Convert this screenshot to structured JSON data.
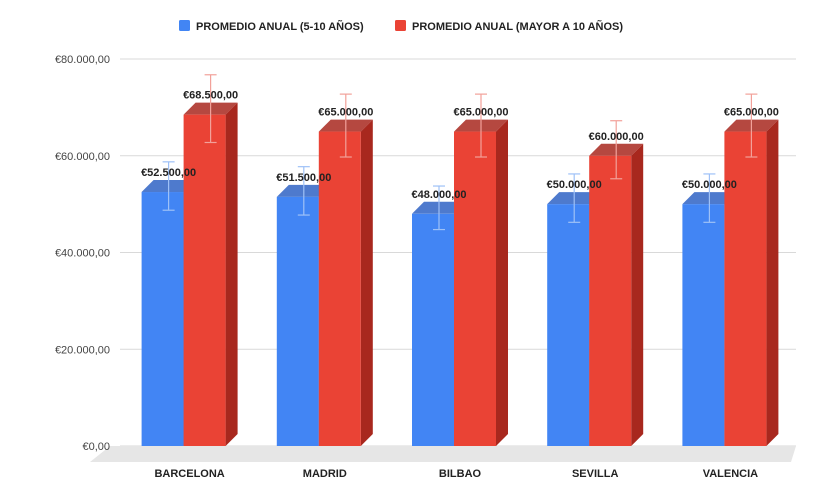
{
  "chart_data": {
    "type": "bar",
    "title": "",
    "xlabel": "",
    "ylabel": "",
    "categories": [
      "BARCELONA",
      "MADRID",
      "BILBAO",
      "SEVILLA",
      "VALENCIA"
    ],
    "series": [
      {
        "name": "PROMEDIO ANUAL (5-10 AÑOS)",
        "color": "#4285f4",
        "side_color": "#2f63c4",
        "values": [
          52500,
          51500,
          48000,
          50000,
          50000
        ],
        "labels": [
          "€52.500,00",
          "€51.500,00",
          "€48.000,00",
          "€50.000,00",
          "€50.000,00"
        ],
        "error_low": [
          47500,
          46500,
          43500,
          45000,
          45000
        ],
        "error_high": [
          57500,
          56500,
          52500,
          55000,
          55000
        ]
      },
      {
        "name": "PROMEDIO ANUAL (MAYOR A 10 AÑOS)",
        "color": "#ea4335",
        "side_color": "#a8281e",
        "values": [
          68500,
          65000,
          65000,
          60000,
          65000
        ],
        "labels": [
          "€68.500,00",
          "€65.000,00",
          "€65.000,00",
          "€60.000,00",
          "€65.000,00"
        ],
        "error_low": [
          61500,
          58500,
          58500,
          54000,
          58500
        ],
        "error_high": [
          75500,
          71500,
          71500,
          66000,
          71500
        ]
      }
    ],
    "ylim": [
      0,
      80000
    ],
    "yticks": [
      0,
      20000,
      40000,
      60000,
      80000
    ],
    "ytick_labels": [
      "€0,00",
      "€20.000,00",
      "€40.000,00",
      "€60.000,00",
      "€80.000,00"
    ],
    "grid": true,
    "legend_position": "top-center",
    "three_d": true
  }
}
